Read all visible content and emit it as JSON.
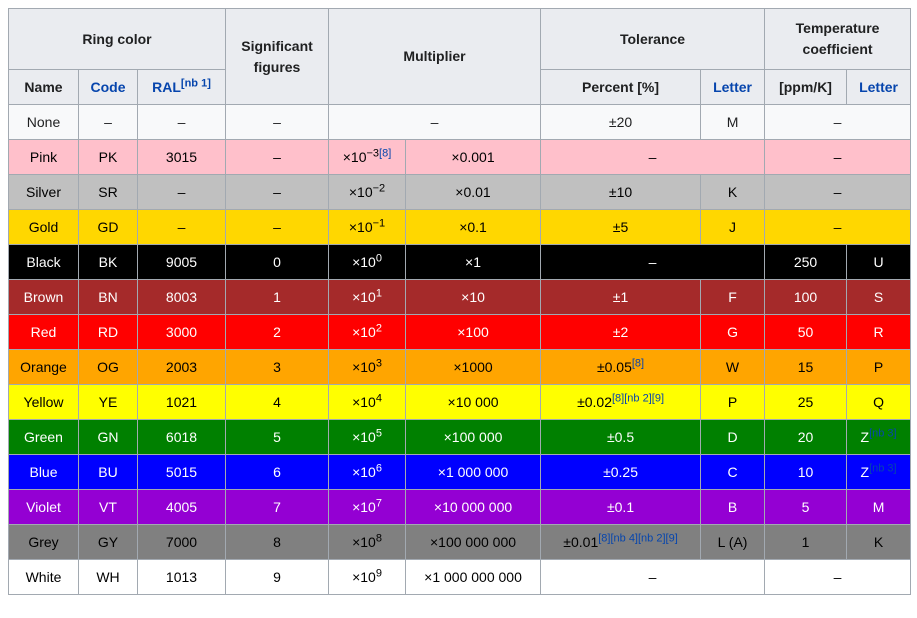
{
  "colors": {
    "border": "#a2a9b1",
    "header_bg": "#eaecf0",
    "link": "#0645ad"
  },
  "table": {
    "header": {
      "ring_color": "Ring color",
      "name": "Name",
      "code": "Code",
      "ral": "RAL",
      "ral_note": "[nb 1]",
      "significant_figures": "Significant figures",
      "multiplier": "Multiplier",
      "tolerance": "Tolerance",
      "percent": "Percent [%]",
      "tolerance_letter": "Letter",
      "temperature_coefficient": "Temperature coefficient",
      "ppm_per_k": "[ppm/K]",
      "temp_letter": "Letter"
    },
    "rows": [
      {
        "name": "None",
        "code": "–",
        "ral": "–",
        "sig": "–",
        "mult": {
          "span": true,
          "text": "–"
        },
        "tol": {
          "span": false,
          "percent": "±20",
          "refs": [],
          "letter": "M"
        },
        "temp": {
          "span": true,
          "text": "–"
        },
        "bg": "#f8f9fa",
        "fg": "#202122"
      },
      {
        "name": "Pink",
        "code": "PK",
        "ral": "3015",
        "sig": "–",
        "mult": {
          "span": false,
          "base": "×10",
          "exp": "−3",
          "refs": [
            "[8]"
          ],
          "value": "×0.001"
        },
        "tol": {
          "span": true,
          "text": "–"
        },
        "temp": {
          "span": true,
          "text": "–"
        },
        "bg": "#ffc0cb",
        "fg": "#000000"
      },
      {
        "name": "Silver",
        "code": "SR",
        "ral": "–",
        "sig": "–",
        "mult": {
          "span": false,
          "base": "×10",
          "exp": "−2",
          "refs": [],
          "value": "×0.01"
        },
        "tol": {
          "span": false,
          "percent": "±10",
          "refs": [],
          "letter": "K"
        },
        "temp": {
          "span": true,
          "text": "–"
        },
        "bg": "#c0c0c0",
        "fg": "#000000"
      },
      {
        "name": "Gold",
        "code": "GD",
        "ral": "–",
        "sig": "–",
        "mult": {
          "span": false,
          "base": "×10",
          "exp": "−1",
          "refs": [],
          "value": "×0.1"
        },
        "tol": {
          "span": false,
          "percent": "±5",
          "refs": [],
          "letter": "J"
        },
        "temp": {
          "span": true,
          "text": "–"
        },
        "bg": "#ffd700",
        "fg": "#000000"
      },
      {
        "name": "Black",
        "code": "BK",
        "ral": "9005",
        "sig": "0",
        "mult": {
          "span": false,
          "base": "×10",
          "exp": "0",
          "refs": [],
          "value": "×1"
        },
        "tol": {
          "span": true,
          "text": "–"
        },
        "temp": {
          "span": false,
          "ppm": "250",
          "letter": "U",
          "refs": []
        },
        "bg": "#000000",
        "fg": "#ffffff"
      },
      {
        "name": "Brown",
        "code": "BN",
        "ral": "8003",
        "sig": "1",
        "mult": {
          "span": false,
          "base": "×10",
          "exp": "1",
          "refs": [],
          "value": "×10"
        },
        "tol": {
          "span": false,
          "percent": "±1",
          "refs": [],
          "letter": "F"
        },
        "temp": {
          "span": false,
          "ppm": "100",
          "letter": "S",
          "refs": []
        },
        "bg": "#a52a2a",
        "fg": "#ffffff"
      },
      {
        "name": "Red",
        "code": "RD",
        "ral": "3000",
        "sig": "2",
        "mult": {
          "span": false,
          "base": "×10",
          "exp": "2",
          "refs": [],
          "value": "×100"
        },
        "tol": {
          "span": false,
          "percent": "±2",
          "refs": [],
          "letter": "G"
        },
        "temp": {
          "span": false,
          "ppm": "50",
          "letter": "R",
          "refs": []
        },
        "bg": "#ff0000",
        "fg": "#ffffff"
      },
      {
        "name": "Orange",
        "code": "OG",
        "ral": "2003",
        "sig": "3",
        "mult": {
          "span": false,
          "base": "×10",
          "exp": "3",
          "refs": [],
          "value": "×1000"
        },
        "tol": {
          "span": false,
          "percent": "±0.05",
          "refs": [
            "[8]"
          ],
          "letter": "W"
        },
        "temp": {
          "span": false,
          "ppm": "15",
          "letter": "P",
          "refs": []
        },
        "bg": "#ffa500",
        "fg": "#000000"
      },
      {
        "name": "Yellow",
        "code": "YE",
        "ral": "1021",
        "sig": "4",
        "mult": {
          "span": false,
          "base": "×10",
          "exp": "4",
          "refs": [],
          "value": "×10 000"
        },
        "tol": {
          "span": false,
          "percent": "±0.02",
          "refs": [
            "[8]",
            "[nb 2]",
            "[9]"
          ],
          "letter": "P"
        },
        "temp": {
          "span": false,
          "ppm": "25",
          "letter": "Q",
          "refs": []
        },
        "bg": "#ffff00",
        "fg": "#000000"
      },
      {
        "name": "Green",
        "code": "GN",
        "ral": "6018",
        "sig": "5",
        "mult": {
          "span": false,
          "base": "×10",
          "exp": "5",
          "refs": [],
          "value": "×100 000"
        },
        "tol": {
          "span": false,
          "percent": "±0.5",
          "refs": [],
          "letter": "D"
        },
        "temp": {
          "span": false,
          "ppm": "20",
          "letter": "Z",
          "refs": [
            "[nb 3]"
          ]
        },
        "bg": "#008000",
        "fg": "#ffffff"
      },
      {
        "name": "Blue",
        "code": "BU",
        "ral": "5015",
        "sig": "6",
        "mult": {
          "span": false,
          "base": "×10",
          "exp": "6",
          "refs": [],
          "value": "×1 000 000"
        },
        "tol": {
          "span": false,
          "percent": "±0.25",
          "refs": [],
          "letter": "C"
        },
        "temp": {
          "span": false,
          "ppm": "10",
          "letter": "Z",
          "refs": [
            "[nb 3]"
          ]
        },
        "bg": "#0000ff",
        "fg": "#ffffff"
      },
      {
        "name": "Violet",
        "code": "VT",
        "ral": "4005",
        "sig": "7",
        "mult": {
          "span": false,
          "base": "×10",
          "exp": "7",
          "refs": [],
          "value": "×10 000 000"
        },
        "tol": {
          "span": false,
          "percent": "±0.1",
          "refs": [],
          "letter": "B"
        },
        "temp": {
          "span": false,
          "ppm": "5",
          "letter": "M",
          "refs": []
        },
        "bg": "#9400d3",
        "fg": "#ffffff"
      },
      {
        "name": "Grey",
        "code": "GY",
        "ral": "7000",
        "sig": "8",
        "mult": {
          "span": false,
          "base": "×10",
          "exp": "8",
          "refs": [],
          "value": "×100 000 000"
        },
        "tol": {
          "span": false,
          "percent": "±0.01",
          "refs": [
            "[8]",
            "[nb 4]",
            "[nb 2]",
            "[9]"
          ],
          "letter": "L (A)"
        },
        "temp": {
          "span": false,
          "ppm": "1",
          "letter": "K",
          "refs": []
        },
        "bg": "#808080",
        "fg": "#000000"
      },
      {
        "name": "White",
        "code": "WH",
        "ral": "1013",
        "sig": "9",
        "mult": {
          "span": false,
          "base": "×10",
          "exp": "9",
          "refs": [],
          "value": "×1 000 000 000"
        },
        "tol": {
          "span": true,
          "text": "–"
        },
        "temp": {
          "span": true,
          "text": "–"
        },
        "bg": "#ffffff",
        "fg": "#000000"
      }
    ]
  }
}
